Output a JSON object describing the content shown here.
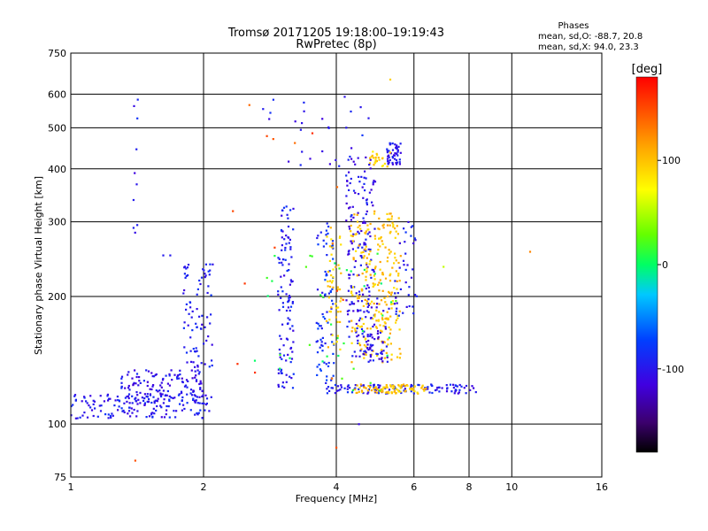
{
  "chart_data": {
    "type": "scatter",
    "title": "Tromsø 20171205 19:18:00–19:19:43",
    "subtitle": "RwPretec (8p)",
    "xlabel": "Frequency [MHz]",
    "ylabel": "Stationary phase Virtual Height [km]",
    "xscale": "log",
    "yscale": "log",
    "xlim": [
      1,
      16
    ],
    "ylim": [
      75,
      750
    ],
    "x_ticks": [
      1,
      2,
      4,
      6,
      8,
      10,
      16
    ],
    "y_ticks": [
      75,
      100,
      200,
      300,
      400,
      500,
      600,
      750
    ],
    "grid": true,
    "stats": {
      "heading": "Phases",
      "line_o": "mean, sd,O: -88.7, 20.8",
      "line_x": "mean, sd,X:  94.0, 23.3"
    },
    "colorbar": {
      "label": "[deg]",
      "range": [
        -180,
        180
      ],
      "ticks": [
        -100,
        0,
        100
      ]
    },
    "clusters": [
      {
        "name": "low-E-trace-blue",
        "x": [
          1.0,
          2.1
        ],
        "y": [
          103,
          118
        ],
        "phase": -100,
        "n": 150
      },
      {
        "name": "E-spread-blue",
        "x": [
          1.3,
          2.0
        ],
        "y": [
          112,
          135
        ],
        "phase": -105,
        "n": 140
      },
      {
        "name": "E-rise-blue",
        "x": [
          1.8,
          2.1
        ],
        "y": [
          135,
          240
        ],
        "phase": -100,
        "n": 80
      },
      {
        "name": "E-horizontal",
        "x": [
          3.8,
          8.4
        ],
        "y": [
          118,
          124
        ],
        "phase": -100,
        "n": 120
      },
      {
        "name": "E-horizontal-yellow",
        "x": [
          4.4,
          6.4
        ],
        "y": [
          118,
          124
        ],
        "phase": 105,
        "n": 90
      },
      {
        "name": "F-col-3MHz-blue",
        "x": [
          2.95,
          3.2
        ],
        "y": [
          120,
          330
        ],
        "phase": -100,
        "n": 110
      },
      {
        "name": "F-col-3.7MHz",
        "x": [
          3.6,
          3.95
        ],
        "y": [
          120,
          300
        ],
        "phase": -90,
        "n": 80
      },
      {
        "name": "F-col-3.7MHz-yellow",
        "x": [
          3.8,
          4.1
        ],
        "y": [
          150,
          300
        ],
        "phase": 100,
        "n": 50
      },
      {
        "name": "F-col-4.5MHz-blue",
        "x": [
          4.2,
          4.9
        ],
        "y": [
          140,
          430
        ],
        "phase": -105,
        "n": 170
      },
      {
        "name": "F-arc-yellow",
        "x": [
          4.3,
          5.6
        ],
        "y": [
          140,
          320
        ],
        "phase": 105,
        "n": 240
      },
      {
        "name": "F-upper-blue",
        "x": [
          5.2,
          5.6
        ],
        "y": [
          410,
          460
        ],
        "phase": -105,
        "n": 50
      },
      {
        "name": "F-upper-yellow",
        "x": [
          4.7,
          5.3
        ],
        "y": [
          400,
          440
        ],
        "phase": 100,
        "n": 25
      },
      {
        "name": "F-blue-lower",
        "x": [
          4.4,
          5.3
        ],
        "y": [
          140,
          200
        ],
        "phase": -110,
        "n": 60
      },
      {
        "name": "F-col-5.6MHz",
        "x": [
          5.4,
          6.1
        ],
        "y": [
          180,
          300
        ],
        "phase": -100,
        "n": 40
      },
      {
        "name": "F-green-cyan",
        "x": [
          2.6,
          5.5
        ],
        "y": [
          120,
          260
        ],
        "phase": 10,
        "n": 40
      },
      {
        "name": "sparse-red",
        "x": [
          2.3,
          4.2
        ],
        "y": [
          120,
          600
        ],
        "phase": 150,
        "n": 15
      },
      {
        "name": "sparse-high",
        "x": [
          2.7,
          4.8
        ],
        "y": [
          400,
          600
        ],
        "phase": -100,
        "n": 30
      },
      {
        "name": "stray-1.4MHz",
        "x": [
          1.38,
          1.42
        ],
        "y": [
          190,
          600
        ],
        "phase": -100,
        "n": 10
      }
    ],
    "points": [
      {
        "x": 1.4,
        "y": 82,
        "phase": 150
      },
      {
        "x": 4.0,
        "y": 88,
        "phase": 150
      },
      {
        "x": 11.0,
        "y": 255,
        "phase": 130
      },
      {
        "x": 1.62,
        "y": 250,
        "phase": -100
      },
      {
        "x": 1.68,
        "y": 250,
        "phase": -100
      },
      {
        "x": 7.0,
        "y": 235,
        "phase": 60
      },
      {
        "x": 4.5,
        "y": 100,
        "phase": -110
      },
      {
        "x": 5.3,
        "y": 650,
        "phase": 100
      }
    ]
  }
}
